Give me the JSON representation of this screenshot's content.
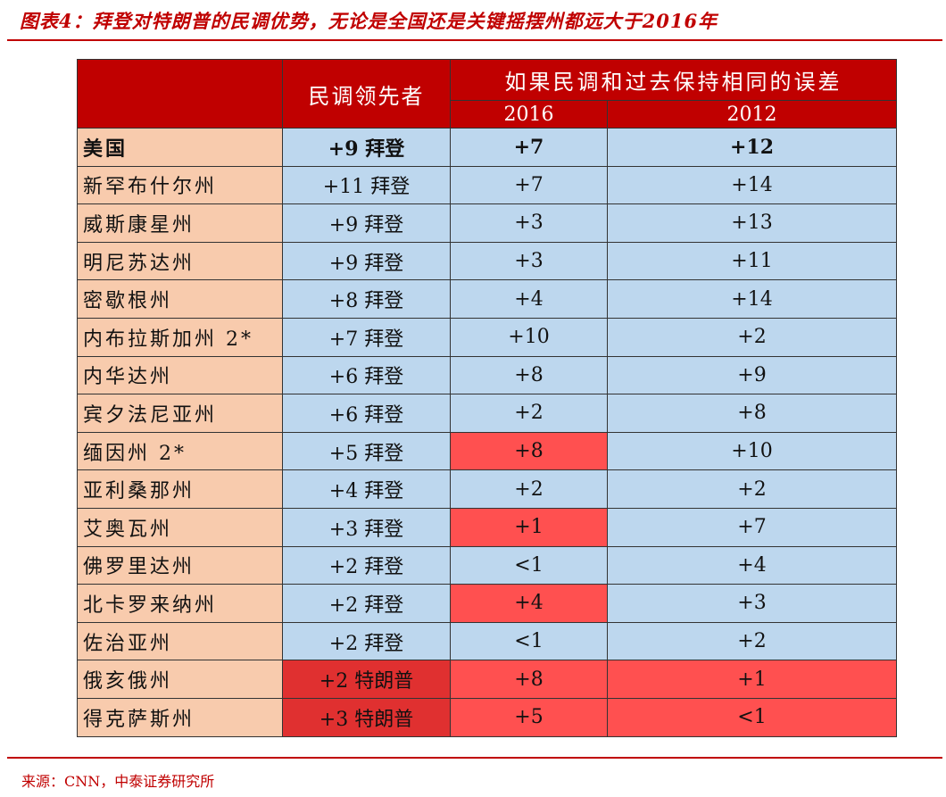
{
  "title": "图表4：拜登对特朗普的民调优势，无论是全国还是关键摇摆州都远大于2016年",
  "header": {
    "lead": "民调领先者",
    "margin_group": "如果民调和过去保持相同的误差",
    "year_a": "2016",
    "year_b": "2012"
  },
  "rows": [
    {
      "state": "美国",
      "lead": "+9 拜登",
      "y2016": "+7",
      "y2012": "+12"
    },
    {
      "state": "新罕布什尔州",
      "lead": "+11 拜登",
      "y2016": "+7",
      "y2012": "+14"
    },
    {
      "state": "威斯康星州",
      "lead": "+9 拜登",
      "y2016": "+3",
      "y2012": "+13"
    },
    {
      "state": "明尼苏达州",
      "lead": "+9 拜登",
      "y2016": "+3",
      "y2012": "+11"
    },
    {
      "state": "密歇根州",
      "lead": "+8 拜登",
      "y2016": "+4",
      "y2012": "+14"
    },
    {
      "state": "内布拉斯加州 2*",
      "lead": "+7 拜登",
      "y2016": "+10",
      "y2012": "+2"
    },
    {
      "state": "内华达州",
      "lead": "+6 拜登",
      "y2016": "+8",
      "y2012": "+9"
    },
    {
      "state": "宾夕法尼亚州",
      "lead": "+6 拜登",
      "y2016": "+2",
      "y2012": "+8"
    },
    {
      "state": "缅因州 2*",
      "lead": "+5 拜登",
      "y2016": "+8",
      "y2012": "+10"
    },
    {
      "state": "亚利桑那州",
      "lead": "+4 拜登",
      "y2016": "+2",
      "y2012": "+2"
    },
    {
      "state": "艾奥瓦州",
      "lead": "+3 拜登",
      "y2016": "+1",
      "y2012": "+7"
    },
    {
      "state": "佛罗里达州",
      "lead": "+2 拜登",
      "y2016": "<1",
      "y2012": "+4"
    },
    {
      "state": "北卡罗来纳州",
      "lead": "+2 拜登",
      "y2016": "+4",
      "y2012": "+3"
    },
    {
      "state": "佐治亚州",
      "lead": "+2 拜登",
      "y2016": "<1",
      "y2012": "+2"
    },
    {
      "state": "俄亥俄州",
      "lead": "+2 特朗普",
      "y2016": "+8",
      "y2012": "+1"
    },
    {
      "state": "得克萨斯州",
      "lead": "+3 特朗普",
      "y2016": "+5",
      "y2012": "<1"
    }
  ],
  "colors": {
    "header_red": "#c00000",
    "state_peach": "#f8cbad",
    "cell_blue": "#bdd7ee",
    "highlight_red": "#ff5050",
    "trump_red": "#e03030"
  },
  "source": "来源：CNN，中泰证券研究所"
}
